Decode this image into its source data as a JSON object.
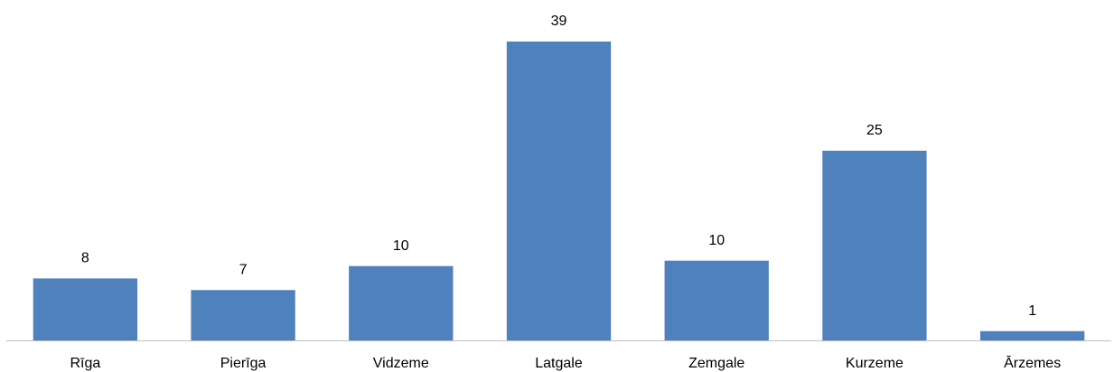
{
  "chart_data": {
    "type": "bar",
    "categories": [
      "Rīga",
      "Pierīga",
      "Vidzeme",
      "Latgale",
      "Zemgale",
      "Kurzeme",
      "Ārzemes"
    ],
    "values": [
      8.0,
      6.5,
      9.6,
      38.6,
      10.3,
      24.5,
      1.2
    ],
    "value_labels": [
      "8",
      "7",
      "10",
      "39",
      "10",
      "25",
      "1"
    ],
    "color": "#4f81bd"
  }
}
